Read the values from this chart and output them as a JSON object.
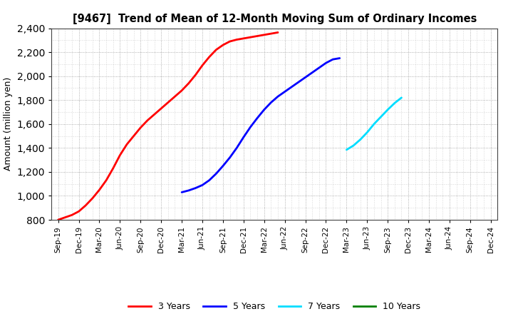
{
  "title": "[9467]  Trend of Mean of 12-Month Moving Sum of Ordinary Incomes",
  "ylabel": "Amount (million yen)",
  "ylim": [
    800,
    2400
  ],
  "yticks": [
    800,
    1000,
    1200,
    1400,
    1600,
    1800,
    2000,
    2200,
    2400
  ],
  "background_color": "#ffffff",
  "grid_color": "#aaaaaa",
  "series": {
    "3years": {
      "color": "#ff0000",
      "label": "3 Years",
      "x_start": 0,
      "points": [
        800,
        820,
        840,
        870,
        920,
        980,
        1050,
        1130,
        1230,
        1340,
        1430,
        1500,
        1570,
        1630,
        1680,
        1730,
        1780,
        1830,
        1880,
        1940,
        2010,
        2090,
        2160,
        2220,
        2260,
        2290,
        2305,
        2315,
        2325,
        2335,
        2345,
        2355,
        2365
      ]
    },
    "5years": {
      "color": "#0000ff",
      "label": "5 Years",
      "x_start": 18,
      "points": [
        1030,
        1045,
        1065,
        1090,
        1130,
        1185,
        1250,
        1320,
        1400,
        1490,
        1575,
        1650,
        1720,
        1780,
        1830,
        1870,
        1910,
        1950,
        1990,
        2030,
        2070,
        2110,
        2140,
        2150
      ]
    },
    "7years": {
      "color": "#00ddff",
      "label": "7 Years",
      "x_start": 42,
      "points": [
        1385,
        1420,
        1470,
        1530,
        1600,
        1660,
        1720,
        1775,
        1820
      ]
    },
    "10years": {
      "color": "#008000",
      "label": "10 Years",
      "x_start": 42,
      "points": []
    }
  },
  "xtick_positions": [
    0,
    3,
    6,
    9,
    12,
    15,
    18,
    21,
    24,
    27,
    30,
    33,
    36,
    39,
    42,
    45,
    48,
    51,
    54,
    57,
    60,
    63
  ],
  "xtick_labels": [
    "Sep-19",
    "Dec-19",
    "Mar-20",
    "Jun-20",
    "Sep-20",
    "Dec-20",
    "Mar-21",
    "Jun-21",
    "Sep-21",
    "Dec-21",
    "Mar-22",
    "Jun-22",
    "Sep-22",
    "Dec-22",
    "Mar-23",
    "Jun-23",
    "Sep-23",
    "Dec-23",
    "Mar-24",
    "Jun-24",
    "Sep-24",
    "Dec-24"
  ],
  "x_total_months": 63,
  "legend_entries": [
    {
      "label": "3 Years",
      "color": "#ff0000"
    },
    {
      "label": "5 Years",
      "color": "#0000ff"
    },
    {
      "label": "7 Years",
      "color": "#00ddff"
    },
    {
      "label": "10 Years",
      "color": "#008000"
    }
  ]
}
